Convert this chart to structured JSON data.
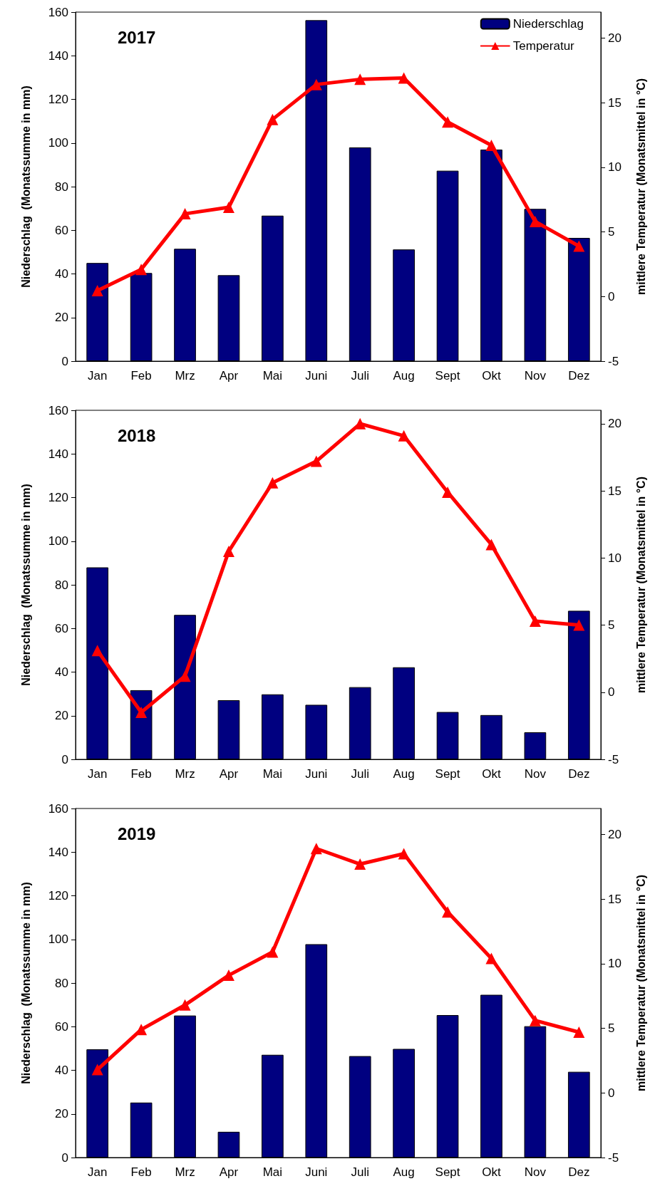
{
  "chart_data": [
    {
      "type": "bar",
      "title": "2017",
      "categories": [
        "Jan",
        "Feb",
        "Mrz",
        "Apr",
        "Mai",
        "Juni",
        "Juli",
        "Aug",
        "Sept",
        "Okt",
        "Nov",
        "Dez"
      ],
      "ylabel": "Niederschlag  (Monatssumme in mm)",
      "y2label": "mittlere Temperatur (Monatsmittel in °C)",
      "ylim": [
        0,
        160
      ],
      "yticks": [
        0,
        20,
        40,
        60,
        80,
        100,
        120,
        140,
        160
      ],
      "y2lim": [
        -5,
        22
      ],
      "y2ticks": [
        -5,
        0,
        5,
        10,
        15,
        20
      ],
      "legend": "top right",
      "marker": "triangle",
      "line_style": "solid",
      "series": [
        {
          "name": "Niederschlag",
          "color": "#000080",
          "values": [
            45,
            40.4,
            51.5,
            39.4,
            66.7,
            156.3,
            98,
            51.2,
            87.3,
            97,
            69.8,
            56.5
          ]
        },
        {
          "name": "Temperatur",
          "type": "line",
          "axis": "y2",
          "color": "#ff0000",
          "values": [
            0.45,
            2.1,
            6.4,
            6.9,
            13.7,
            16.4,
            16.8,
            16.9,
            13.5,
            11.7,
            5.8,
            3.9
          ]
        }
      ]
    },
    {
      "type": "bar",
      "title": "2018",
      "categories": [
        "Jan",
        "Feb",
        "Mrz",
        "Apr",
        "Mai",
        "Juni",
        "Juli",
        "Aug",
        "Sept",
        "Okt",
        "Nov",
        "Dez"
      ],
      "ylabel": "Niederschlag  (Monatssumme in mm)",
      "y2label": "mittlere Temperatur (Monatsmittel in °C)",
      "ylim": [
        0,
        160
      ],
      "yticks": [
        0,
        20,
        40,
        60,
        80,
        100,
        120,
        140,
        160
      ],
      "y2lim": [
        -5,
        21
      ],
      "y2ticks": [
        -5,
        0,
        5,
        10,
        15,
        20
      ],
      "marker": "triangle",
      "line_style": "solid",
      "series": [
        {
          "color": "#000080",
          "values": [
            88,
            31.7,
            66.2,
            27.1,
            29.8,
            25,
            33.1,
            42.2,
            21.7,
            20.3,
            12.4,
            68.1
          ]
        },
        {
          "type": "line",
          "axis": "y2",
          "color": "#ff0000",
          "values": [
            3.1,
            -1.5,
            1.2,
            10.5,
            15.6,
            17.2,
            20,
            19.1,
            14.9,
            11,
            5.3,
            5
          ]
        }
      ]
    },
    {
      "type": "bar",
      "title": "2019",
      "categories": [
        "Jan",
        "Feb",
        "Mrz",
        "Apr",
        "Mai",
        "Juni",
        "Juli",
        "Aug",
        "Sept",
        "Okt",
        "Nov",
        "Dez"
      ],
      "ylabel": "Niederschlag  (Monatssumme in mm)",
      "y2label": "mittlere Temperatur (Monatsmittel in °C)",
      "ylim": [
        0,
        160
      ],
      "yticks": [
        0,
        20,
        40,
        60,
        80,
        100,
        120,
        140,
        160
      ],
      "y2lim": [
        -5,
        22
      ],
      "y2ticks": [
        -5,
        0,
        5,
        10,
        15,
        20
      ],
      "marker": "triangle",
      "line_style": "solid",
      "series": [
        {
          "color": "#000080",
          "values": [
            49.6,
            25.2,
            65.1,
            11.8,
            47.1,
            97.8,
            46.5,
            49.8,
            65.3,
            74.6,
            60.2,
            39.3
          ]
        },
        {
          "type": "line",
          "axis": "y2",
          "color": "#ff0000",
          "values": [
            1.8,
            4.9,
            6.8,
            9.1,
            10.9,
            18.9,
            17.7,
            18.5,
            14,
            10.4,
            5.6,
            4.7
          ]
        }
      ]
    }
  ]
}
